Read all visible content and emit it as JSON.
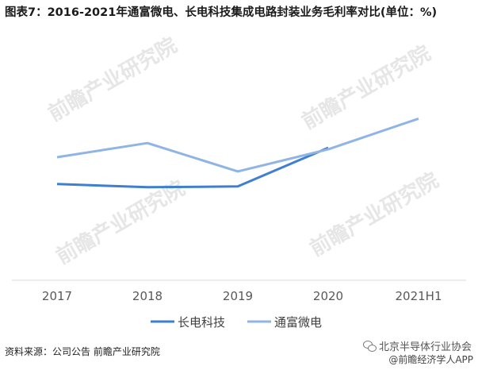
{
  "title": "图表7：2016-2021年通富微电、长电科技集成电路封装业务毛利率对比(单位：%)",
  "source": "资料来源：公司公告 前瞻产业研究院",
  "watermark_text": "前瞻产业研究院",
  "wechat_account": "北京半导体行业协会",
  "app_credit": "@前瞻经济学人APP",
  "chart_data": {
    "type": "line",
    "categories": [
      "2017",
      "2018",
      "2019",
      "2020",
      "2021H1"
    ],
    "ylim": [
      0,
      30
    ],
    "grid": false,
    "legend_position": "bottom",
    "series": [
      {
        "name": "长电科技",
        "color": "#3f7fd0",
        "values": [
          12.2,
          11.8,
          11.9,
          16.8,
          null
        ]
      },
      {
        "name": "通富微电",
        "color": "#8fb4e6",
        "values": [
          15.6,
          17.4,
          13.8,
          16.6,
          20.5
        ]
      }
    ]
  }
}
